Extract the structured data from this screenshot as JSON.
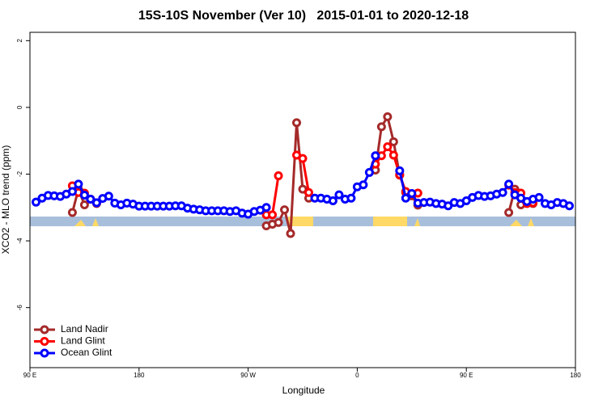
{
  "chart_data": {
    "type": "line",
    "title": "15S-10S November (Ver 10)   2015-01-01 to 2020-12-18",
    "x_label": "Longitude",
    "y_label": "XCO2 - MLO trend (ppm)",
    "xlim": [
      90,
      540
    ],
    "xticks": [
      {
        "value": 90,
        "label": "90 E"
      },
      {
        "value": 180,
        "label": "180"
      },
      {
        "value": 270,
        "label": "90 W"
      },
      {
        "value": 360,
        "label": "0"
      },
      {
        "value": 450,
        "label": "90 E"
      },
      {
        "value": 540,
        "label": "180"
      }
    ],
    "ylim": [
      -7.8,
      2.25
    ],
    "yticks": [
      2,
      0,
      -2,
      -4,
      -6
    ],
    "legend": "bottom-left",
    "x": [
      95,
      100,
      105,
      110,
      115,
      120,
      125,
      130,
      135,
      140,
      145,
      150,
      155,
      160,
      165,
      170,
      175,
      180,
      185,
      190,
      195,
      200,
      205,
      210,
      215,
      220,
      225,
      230,
      235,
      240,
      245,
      250,
      255,
      260,
      265,
      270,
      275,
      280,
      285,
      290,
      295,
      300,
      305,
      310,
      315,
      320,
      325,
      330,
      335,
      340,
      345,
      350,
      355,
      360,
      365,
      370,
      375,
      380,
      385,
      390,
      395,
      400,
      405,
      410,
      415,
      420,
      425,
      430,
      435,
      440,
      445,
      450,
      455,
      460,
      465,
      470,
      475,
      480,
      485,
      490,
      495,
      500,
      505,
      510,
      515,
      520,
      525,
      530,
      535
    ],
    "series": [
      {
        "name": "Land Nadir",
        "color": "#a52a2a",
        "values": [
          null,
          null,
          null,
          null,
          null,
          null,
          -3.15,
          -2.45,
          -2.92,
          null,
          -2.88,
          null,
          null,
          null,
          null,
          null,
          null,
          null,
          null,
          null,
          null,
          null,
          null,
          null,
          null,
          null,
          null,
          null,
          null,
          null,
          null,
          null,
          null,
          null,
          null,
          null,
          null,
          null,
          -3.55,
          -3.5,
          -3.45,
          -3.07,
          -3.78,
          -0.46,
          -2.45,
          -2.72,
          null,
          null,
          null,
          null,
          null,
          null,
          null,
          null,
          null,
          null,
          -1.88,
          -0.58,
          -0.28,
          -1.03,
          -2.03,
          -2.55,
          -2.65,
          -2.93,
          null,
          null,
          null,
          null,
          null,
          null,
          null,
          null,
          null,
          null,
          null,
          null,
          null,
          null,
          -3.15,
          -2.45,
          -2.92,
          null,
          -2.88,
          null,
          null,
          null,
          null,
          null,
          null
        ]
      },
      {
        "name": "Land Glint",
        "color": "#ff0000",
        "values": [
          null,
          null,
          null,
          null,
          null,
          null,
          -2.35,
          -2.55,
          -2.57,
          -2.75,
          -2.86,
          null,
          null,
          null,
          null,
          null,
          null,
          null,
          null,
          null,
          null,
          null,
          null,
          null,
          null,
          null,
          null,
          null,
          null,
          null,
          null,
          null,
          null,
          null,
          null,
          null,
          null,
          null,
          -3.22,
          -3.22,
          -2.05,
          null,
          null,
          -1.43,
          -1.53,
          -2.55,
          null,
          null,
          null,
          null,
          null,
          null,
          null,
          null,
          null,
          null,
          -1.7,
          -1.45,
          -1.18,
          -1.43,
          -2.02,
          -2.52,
          -2.6,
          -2.57,
          null,
          null,
          null,
          null,
          null,
          null,
          null,
          null,
          null,
          null,
          null,
          null,
          null,
          null,
          -2.33,
          -2.55,
          -2.57,
          -2.88,
          -2.86,
          null,
          null,
          null,
          null,
          null,
          null
        ]
      },
      {
        "name": "Ocean Glint",
        "color": "#0000ff",
        "values": [
          -2.84,
          -2.72,
          -2.64,
          -2.65,
          -2.67,
          -2.6,
          -2.52,
          -2.3,
          -2.63,
          -2.75,
          -2.86,
          -2.73,
          -2.66,
          -2.87,
          -2.92,
          -2.87,
          -2.9,
          -2.96,
          -2.96,
          -2.96,
          -2.96,
          -2.96,
          -2.96,
          -2.95,
          -2.95,
          -3.02,
          -3.05,
          -3.07,
          -3.1,
          -3.1,
          -3.1,
          -3.1,
          -3.12,
          -3.1,
          -3.17,
          -3.2,
          -3.12,
          -3.08,
          -3.0,
          null,
          null,
          null,
          null,
          null,
          null,
          null,
          -2.72,
          -2.72,
          -2.75,
          -2.8,
          -2.62,
          -2.75,
          -2.72,
          -2.38,
          -2.32,
          -1.95,
          -1.45,
          null,
          null,
          null,
          -1.9,
          -2.72,
          -2.58,
          -2.87,
          -2.85,
          -2.84,
          -2.88,
          -2.9,
          -2.95,
          -2.85,
          -2.88,
          -2.8,
          -2.7,
          -2.64,
          -2.67,
          -2.65,
          -2.6,
          -2.55,
          -2.3,
          -2.62,
          -2.72,
          -2.82,
          -2.75,
          -2.7,
          -2.88,
          -2.92,
          -2.85,
          -2.88,
          -2.95
        ]
      }
    ]
  }
}
